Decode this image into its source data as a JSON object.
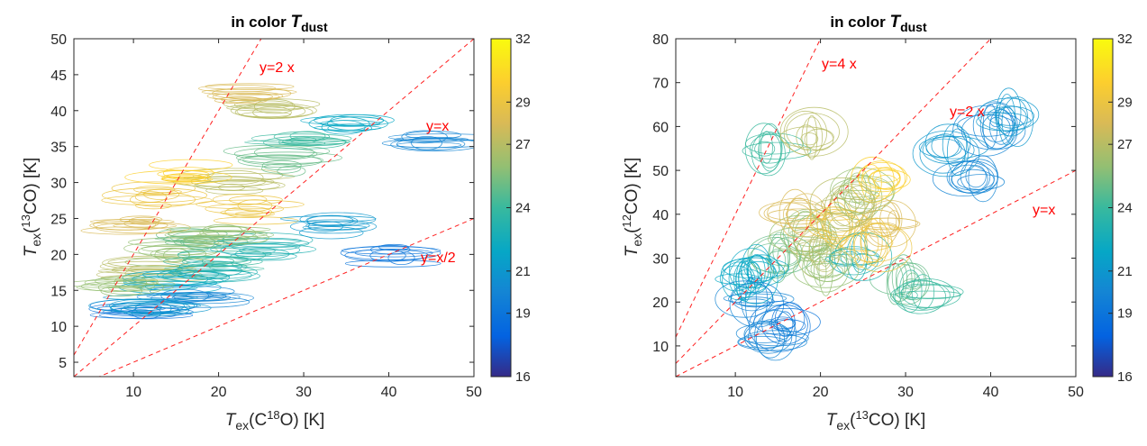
{
  "chart_data": [
    {
      "type": "scatter",
      "title": "in color T_dust",
      "title_text": "in color ",
      "title_sym": "T",
      "title_sub": "dust",
      "xlabel": {
        "sym": "T",
        "sub": "ex",
        "rest": "(C",
        "sup": "18",
        "tail": "O) [K]"
      },
      "ylabel": {
        "sym": "T",
        "sub": "ex",
        "rest": "(",
        "sup": "13",
        "tail": "CO) [K]"
      },
      "xlim": [
        3,
        50
      ],
      "ylim": [
        3,
        50
      ],
      "xticks": [
        10,
        20,
        30,
        40,
        50
      ],
      "yticks": [
        5,
        10,
        15,
        20,
        25,
        30,
        35,
        40,
        45,
        50
      ],
      "colorbar": {
        "range": [
          16,
          32
        ],
        "ticks": [
          16,
          19,
          21,
          24,
          27,
          29,
          32
        ]
      },
      "reference_lines": [
        {
          "label": "y=2 x",
          "slope": 2
        },
        {
          "label": "y=x",
          "slope": 1
        },
        {
          "label": "y=x/2",
          "slope": 0.5
        }
      ],
      "series": [
        {
          "marker": "error-ellipse",
          "color_by": "T_dust",
          "points": [
            [
              12,
              18,
              27
            ],
            [
              15,
              20,
              26
            ],
            [
              18,
              22,
              25
            ],
            [
              14,
              16,
              22
            ],
            [
              20,
              19,
              24
            ],
            [
              25,
              21,
              23
            ],
            [
              10,
              24,
              28
            ],
            [
              13,
              28,
              29
            ],
            [
              22,
              30,
              27
            ],
            [
              28,
              33,
              25
            ],
            [
              30,
              36,
              24
            ],
            [
              35,
              38,
              22
            ],
            [
              45,
              36,
              20
            ],
            [
              17,
              14,
              20
            ],
            [
              11,
              12,
              19
            ],
            [
              24,
              26,
              29
            ],
            [
              16,
              31,
              30
            ],
            [
              26,
              40,
              27
            ],
            [
              33,
              24,
              21
            ],
            [
              40,
              20,
              19
            ],
            [
              19,
              17,
              23
            ],
            [
              12,
              13,
              21
            ],
            [
              21,
              23,
              26
            ],
            [
              23,
              42,
              28
            ],
            [
              9,
              16,
              26
            ]
          ]
        }
      ]
    },
    {
      "type": "scatter",
      "title": "in color T_dust",
      "title_text": "in color ",
      "title_sym": "T",
      "title_sub": "dust",
      "xlabel": {
        "sym": "T",
        "sub": "ex",
        "rest": "(",
        "sup": "13",
        "tail": "CO) [K]"
      },
      "ylabel": {
        "sym": "T",
        "sub": "ex",
        "rest": "(",
        "sup": "12",
        "tail": "CO) [K]"
      },
      "xlim": [
        3,
        50
      ],
      "ylim": [
        3,
        80
      ],
      "xticks": [
        10,
        20,
        30,
        40,
        50
      ],
      "yticks": [
        10,
        20,
        30,
        40,
        50,
        60,
        70,
        80
      ],
      "colorbar": {
        "range": [
          16,
          32
        ],
        "ticks": [
          16,
          19,
          21,
          24,
          27,
          29,
          32
        ]
      },
      "reference_lines": [
        {
          "label": "y=4 x",
          "slope": 4
        },
        {
          "label": "y=2 x",
          "slope": 2
        },
        {
          "label": "y=x",
          "slope": 1
        }
      ],
      "series": [
        {
          "marker": "error-ellipse",
          "color_by": "T_dust",
          "points": [
            [
              15,
              30,
              25
            ],
            [
              18,
              35,
              26
            ],
            [
              20,
              32,
              27
            ],
            [
              13,
              27,
              22
            ],
            [
              17,
              40,
              28
            ],
            [
              22,
              38,
              29
            ],
            [
              14,
              55,
              24
            ],
            [
              19,
              58,
              27
            ],
            [
              25,
              45,
              26
            ],
            [
              28,
              38,
              28
            ],
            [
              30,
              25,
              25
            ],
            [
              35,
              55,
              21
            ],
            [
              40,
              60,
              20
            ],
            [
              12,
              20,
              20
            ],
            [
              16,
              15,
              19
            ],
            [
              24,
              30,
              23
            ],
            [
              27,
              48,
              30
            ],
            [
              32,
              22,
              24
            ],
            [
              42,
              62,
              21
            ],
            [
              11,
              25,
              22
            ],
            [
              21,
              28,
              26
            ],
            [
              26,
              33,
              29
            ],
            [
              38,
              48,
              20
            ],
            [
              14,
              12,
              20
            ],
            [
              23,
              42,
              27
            ]
          ]
        }
      ]
    }
  ]
}
